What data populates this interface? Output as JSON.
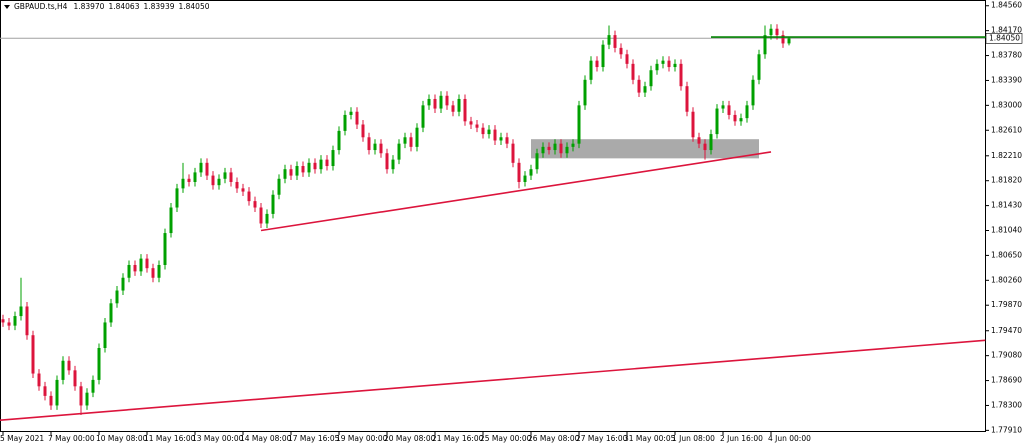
{
  "chart_data": {
    "type": "candlestick",
    "header": {
      "symbol": "GBPAUD.ts,H4",
      "ohlc": [
        {
          "value": 1.8397,
          "label": "1.83970"
        },
        {
          "value": 1.84063,
          "label": "1.84063"
        },
        {
          "value": 1.83939,
          "label": "1.83939"
        },
        {
          "value": 1.8405,
          "label": "1.84050"
        }
      ]
    },
    "categories": [
      "5 May 2021",
      null,
      null,
      null,
      null,
      null,
      null,
      null,
      "7 May 00:00",
      null,
      null,
      null,
      null,
      null,
      null,
      null,
      "10 May 08:00",
      null,
      null,
      null,
      null,
      null,
      null,
      null,
      "11 May 16:00",
      null,
      null,
      null,
      null,
      null,
      null,
      null,
      "13 May 00:00",
      null,
      null,
      null,
      null,
      null,
      null,
      null,
      "14 May 08:00",
      null,
      null,
      null,
      null,
      null,
      null,
      null,
      "17 May 16:05",
      null,
      null,
      null,
      null,
      null,
      null,
      null,
      "19 May 00:00",
      null,
      null,
      null,
      null,
      null,
      null,
      null,
      "20 May 08:00",
      null,
      null,
      null,
      null,
      null,
      null,
      null,
      "21 May 16:00",
      null,
      null,
      null,
      null,
      null,
      null,
      null,
      "25 May 00:00",
      null,
      null,
      null,
      null,
      null,
      null,
      null,
      "26 May 08:00",
      null,
      null,
      null,
      null,
      null,
      null,
      null,
      "27 May 16:00",
      null,
      null,
      null,
      null,
      null,
      null,
      null,
      "31 May 00:05",
      null,
      null,
      null,
      null,
      null,
      null,
      null,
      "1 Jun 08:00",
      null,
      null,
      null,
      null,
      null,
      null,
      null,
      "2 Jun 16:00",
      null,
      null,
      null,
      null,
      null,
      null,
      null,
      "4 Jun 00:00",
      null,
      null,
      null
    ],
    "open": [
      1.7965,
      1.796,
      1.7955,
      1.797,
      1.7985,
      1.794,
      1.788,
      1.786,
      1.7845,
      1.783,
      1.787,
      1.79,
      1.7885,
      1.786,
      1.783,
      1.785,
      1.787,
      1.792,
      1.796,
      1.799,
      1.801,
      1.803,
      1.805,
      1.804,
      1.806,
      1.8045,
      1.803,
      1.805,
      1.81,
      1.814,
      1.817,
      1.8185,
      1.818,
      1.8195,
      1.821,
      1.819,
      1.8175,
      1.8185,
      1.8195,
      1.818,
      1.817,
      1.8165,
      1.815,
      1.814,
      1.8115,
      1.813,
      1.816,
      1.8185,
      1.82,
      1.819,
      1.8205,
      1.8195,
      1.821,
      1.82,
      1.8215,
      1.8205,
      1.823,
      1.826,
      1.8285,
      1.829,
      1.827,
      1.825,
      1.823,
      1.824,
      1.8225,
      1.82,
      1.8215,
      1.824,
      1.825,
      1.8235,
      1.8265,
      1.83,
      1.831,
      1.8295,
      1.8315,
      1.83,
      1.829,
      1.831,
      1.8275,
      1.827,
      1.8265,
      1.8255,
      1.8262,
      1.8245,
      1.825,
      1.824,
      1.821,
      1.818,
      1.819,
      1.82,
      1.8225,
      1.8235,
      1.823,
      1.824,
      1.8225,
      1.8235,
      1.824,
      1.83,
      1.834,
      1.837,
      1.836,
      1.8395,
      1.841,
      1.839,
      1.838,
      1.8365,
      1.834,
      1.832,
      1.833,
      1.8355,
      1.8365,
      1.837,
      1.836,
      1.8365,
      1.833,
      1.829,
      1.825,
      1.824,
      1.823,
      1.8255,
      1.8295,
      1.83,
      1.8285,
      1.8275,
      1.828,
      1.83,
      1.834,
      1.838,
      1.841,
      1.842,
      1.841,
      1.8397
    ],
    "high": [
      1.7972,
      1.7967,
      1.7977,
      1.803,
      1.7992,
      1.7947,
      1.7887,
      1.7867,
      1.7852,
      1.7877,
      1.7907,
      1.7907,
      1.7892,
      1.7867,
      1.7857,
      1.7877,
      1.7927,
      1.7967,
      1.7997,
      1.8017,
      1.8037,
      1.8057,
      1.8057,
      1.8067,
      1.8067,
      1.8052,
      1.8057,
      1.8107,
      1.8147,
      1.8177,
      1.821,
      1.8192,
      1.8202,
      1.8217,
      1.8217,
      1.8197,
      1.8192,
      1.8202,
      1.8202,
      1.8187,
      1.8177,
      1.8172,
      1.8157,
      1.8147,
      1.8137,
      1.8167,
      1.8192,
      1.8207,
      1.8207,
      1.8212,
      1.8212,
      1.8217,
      1.8217,
      1.8222,
      1.8222,
      1.8237,
      1.8267,
      1.8292,
      1.8297,
      1.8297,
      1.8277,
      1.8257,
      1.8247,
      1.8247,
      1.8232,
      1.8222,
      1.8247,
      1.8257,
      1.8257,
      1.8272,
      1.8307,
      1.8317,
      1.8317,
      1.8322,
      1.8322,
      1.8307,
      1.8317,
      1.8317,
      1.8282,
      1.8277,
      1.8272,
      1.8269,
      1.8269,
      1.8257,
      1.8257,
      1.8247,
      1.8217,
      1.8197,
      1.8207,
      1.8232,
      1.8242,
      1.8242,
      1.8247,
      1.8247,
      1.8242,
      1.8247,
      1.8307,
      1.8347,
      1.8377,
      1.8377,
      1.8402,
      1.8425,
      1.8417,
      1.8397,
      1.8387,
      1.8372,
      1.8347,
      1.8337,
      1.8362,
      1.8372,
      1.8377,
      1.8377,
      1.8372,
      1.8372,
      1.8337,
      1.8297,
      1.8257,
      1.8247,
      1.8262,
      1.8302,
      1.8307,
      1.8307,
      1.8292,
      1.8287,
      1.8307,
      1.8347,
      1.8387,
      1.8425,
      1.8427,
      1.8427,
      1.8417,
      1.84063
    ],
    "low": [
      1.7953,
      1.7948,
      1.7948,
      1.7963,
      1.7933,
      1.7873,
      1.7853,
      1.7838,
      1.7823,
      1.7823,
      1.7863,
      1.7878,
      1.7853,
      1.7815,
      1.7823,
      1.7843,
      1.7863,
      1.7913,
      1.7953,
      1.7983,
      1.8003,
      1.8023,
      1.8033,
      1.8033,
      1.8038,
      1.8023,
      1.8023,
      1.8043,
      1.8093,
      1.8133,
      1.8163,
      1.8173,
      1.8173,
      1.8188,
      1.8183,
      1.8168,
      1.8168,
      1.8178,
      1.8173,
      1.8163,
      1.8158,
      1.8143,
      1.8133,
      1.8108,
      1.8108,
      1.8123,
      1.8153,
      1.8178,
      1.8183,
      1.8183,
      1.8188,
      1.8188,
      1.8193,
      1.8193,
      1.8198,
      1.8198,
      1.8223,
      1.8253,
      1.8278,
      1.8263,
      1.8243,
      1.8223,
      1.8223,
      1.8218,
      1.8193,
      1.8193,
      1.8208,
      1.8233,
      1.8228,
      1.8228,
      1.8258,
      1.8293,
      1.8288,
      1.8288,
      1.8293,
      1.8283,
      1.8283,
      1.8268,
      1.8263,
      1.8258,
      1.8248,
      1.8248,
      1.8238,
      1.8238,
      1.8233,
      1.8203,
      1.817,
      1.8173,
      1.8183,
      1.8193,
      1.8218,
      1.8223,
      1.8223,
      1.8218,
      1.8218,
      1.8228,
      1.8233,
      1.8293,
      1.8333,
      1.8353,
      1.8353,
      1.8388,
      1.8383,
      1.8373,
      1.8358,
      1.8333,
      1.8313,
      1.8313,
      1.8323,
      1.8348,
      1.8358,
      1.8353,
      1.8353,
      1.8323,
      1.8283,
      1.8243,
      1.8233,
      1.8215,
      1.8223,
      1.8248,
      1.8288,
      1.8278,
      1.8268,
      1.8268,
      1.8273,
      1.8293,
      1.8333,
      1.8373,
      1.8403,
      1.8403,
      1.839,
      1.83939
    ],
    "close": [
      1.796,
      1.7955,
      1.797,
      1.7985,
      1.794,
      1.788,
      1.786,
      1.7845,
      1.783,
      1.787,
      1.79,
      1.7885,
      1.786,
      1.783,
      1.785,
      1.787,
      1.792,
      1.796,
      1.799,
      1.801,
      1.803,
      1.805,
      1.804,
      1.806,
      1.8045,
      1.803,
      1.805,
      1.81,
      1.814,
      1.817,
      1.8185,
      1.818,
      1.8195,
      1.821,
      1.819,
      1.8175,
      1.8185,
      1.8195,
      1.818,
      1.817,
      1.8165,
      1.815,
      1.814,
      1.8115,
      1.813,
      1.816,
      1.8185,
      1.82,
      1.819,
      1.8205,
      1.8195,
      1.821,
      1.82,
      1.8215,
      1.8205,
      1.823,
      1.826,
      1.8285,
      1.829,
      1.827,
      1.825,
      1.823,
      1.824,
      1.8225,
      1.82,
      1.8215,
      1.824,
      1.825,
      1.8235,
      1.8265,
      1.83,
      1.831,
      1.8295,
      1.8315,
      1.83,
      1.829,
      1.831,
      1.8275,
      1.827,
      1.8265,
      1.8255,
      1.8262,
      1.8245,
      1.825,
      1.824,
      1.821,
      1.818,
      1.819,
      1.82,
      1.8225,
      1.8235,
      1.823,
      1.824,
      1.8225,
      1.8235,
      1.824,
      1.83,
      1.834,
      1.837,
      1.836,
      1.8395,
      1.841,
      1.839,
      1.838,
      1.8365,
      1.834,
      1.832,
      1.833,
      1.8355,
      1.8365,
      1.837,
      1.836,
      1.8365,
      1.833,
      1.829,
      1.825,
      1.824,
      1.823,
      1.8255,
      1.8295,
      1.83,
      1.8285,
      1.8275,
      1.828,
      1.83,
      1.834,
      1.838,
      1.841,
      1.842,
      1.841,
      1.8397,
      1.8405
    ],
    "up_color": "#00a000",
    "down_color": "#dc143c",
    "ylim": [
      1.779,
      1.8465
    ],
    "yticks": [
      {
        "value": 1.8456,
        "label": "1.84560"
      },
      {
        "value": 1.8417,
        "label": "1.84170"
      },
      {
        "value": 1.8378,
        "label": "1.83780"
      },
      {
        "value": 1.8339,
        "label": "1.83390"
      },
      {
        "value": 1.83,
        "label": "1.83000"
      },
      {
        "value": 1.8261,
        "label": "1.82610"
      },
      {
        "value": 1.8221,
        "label": "1.82210"
      },
      {
        "value": 1.8182,
        "label": "1.81820"
      },
      {
        "value": 1.8143,
        "label": "1.81430"
      },
      {
        "value": 1.8104,
        "label": "1.81040"
      },
      {
        "value": 1.8065,
        "label": "1.80650"
      },
      {
        "value": 1.8026,
        "label": "1.80260"
      },
      {
        "value": 1.7987,
        "label": "1.79870"
      },
      {
        "value": 1.7947,
        "label": "1.79470"
      },
      {
        "value": 1.7908,
        "label": "1.79080"
      },
      {
        "value": 1.7869,
        "label": "1.78690"
      },
      {
        "value": 1.783,
        "label": "1.78300"
      },
      {
        "value": 1.7791,
        "label": "1.77910"
      }
    ],
    "last_price": {
      "value": 1.8405,
      "label": "1.84050"
    },
    "trendlines": [
      {
        "color": "#dc143c",
        "x": [
          43,
          128
        ],
        "y": [
          1.8104,
          1.8227
        ]
      },
      {
        "color": "#dc143c",
        "x": [
          -0.5,
          163.7
        ],
        "y": [
          1.7807,
          1.7932
        ]
      }
    ],
    "hline": {
      "color": "#008000",
      "x": [
        118,
        168
      ],
      "value": 1.8407
    },
    "zone": {
      "color": "#aaaaaa",
      "x": [
        88,
        126
      ],
      "y": [
        1.8217,
        1.8247
      ]
    }
  }
}
